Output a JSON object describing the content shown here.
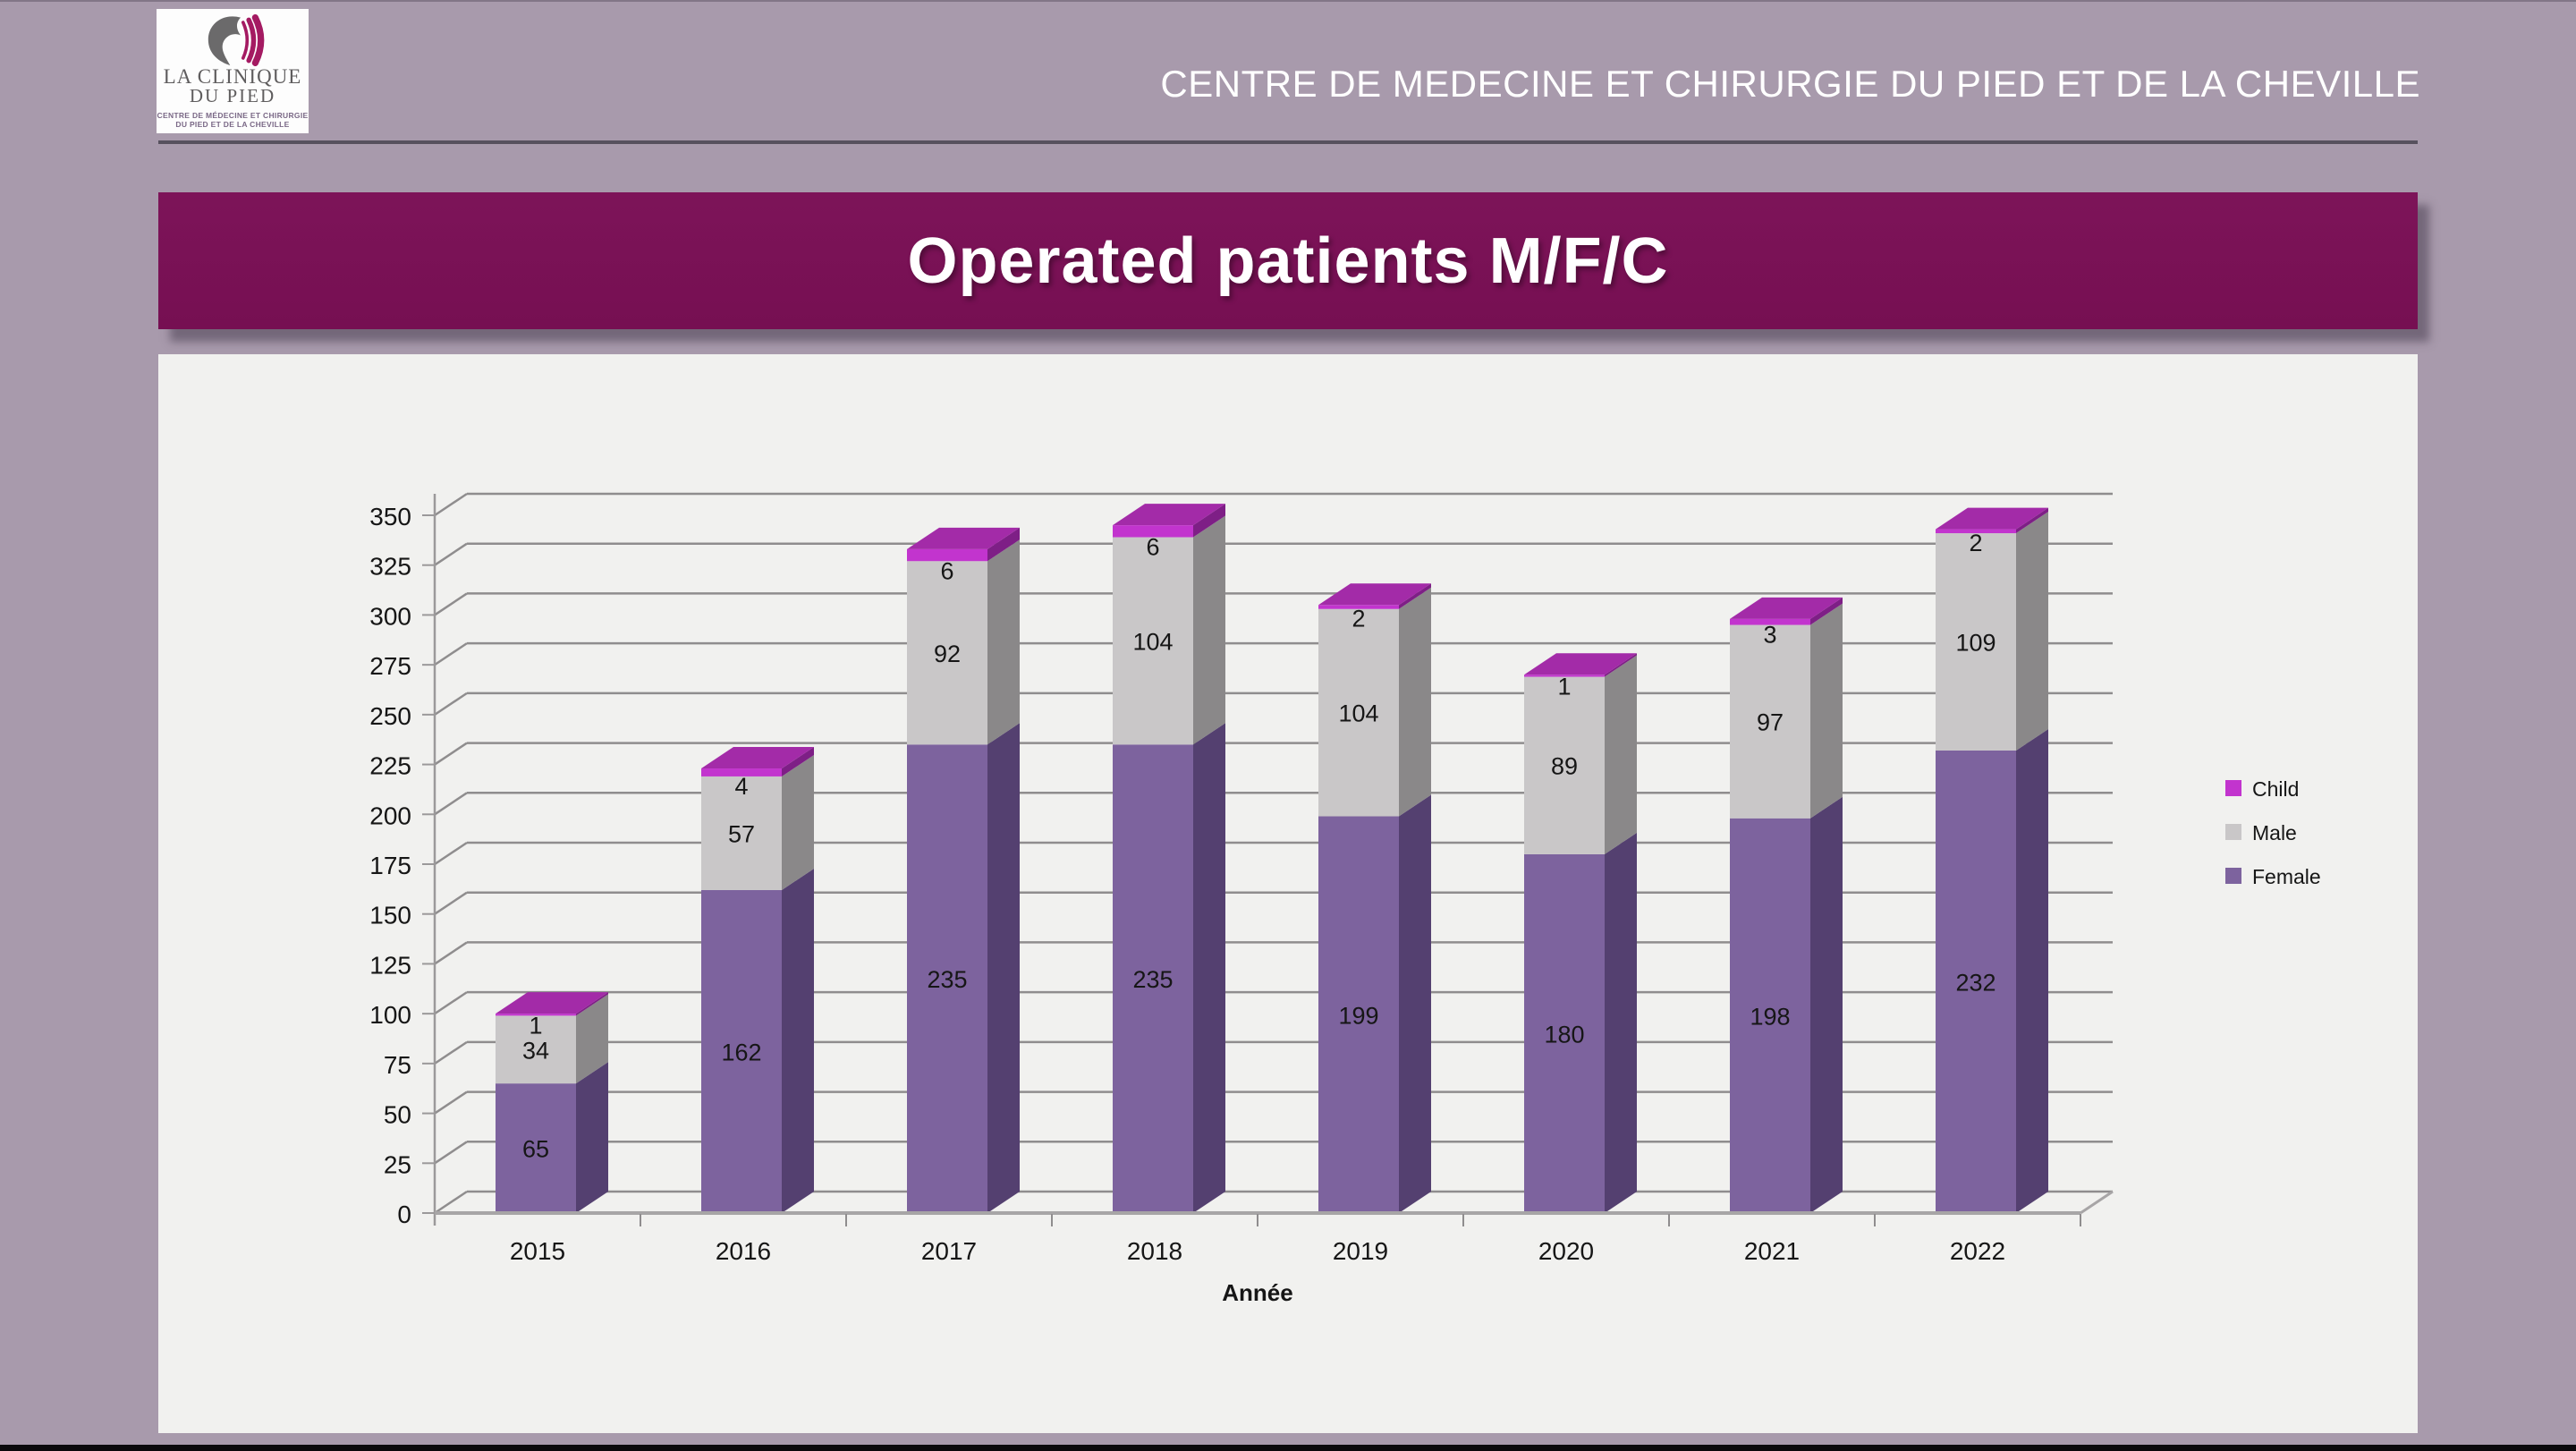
{
  "logo": {
    "name_line1": "LA CLINIQUE",
    "name_line2": "DU PIED",
    "tagline1": "CENTRE DE MÉDECINE ET CHIRURGIE",
    "tagline2": "DU PIED ET DE LA CHEVILLE",
    "icon_gray": "#6b6a6b",
    "icon_magenta": "#a41a62"
  },
  "header": {
    "title": "CENTRE DE MEDECINE ET CHIRURGIE DU PIED ET DE LA CHEVILLE"
  },
  "banner": {
    "title": "Operated patients M/F/C",
    "bg": "#7b1257"
  },
  "chart_data": {
    "type": "bar",
    "stacked": true,
    "projection": "3d",
    "title": "",
    "xlabel": "Année",
    "ylabel": "",
    "ylim": [
      0,
      350
    ],
    "ytick_step": 25,
    "yticks": [
      0,
      25,
      50,
      75,
      100,
      125,
      150,
      175,
      200,
      225,
      250,
      275,
      300,
      325,
      350
    ],
    "grid": true,
    "categories": [
      "2015",
      "2016",
      "2017",
      "2018",
      "2019",
      "2020",
      "2021",
      "2022"
    ],
    "series": [
      {
        "name": "Female",
        "values": [
          65,
          162,
          235,
          235,
          199,
          180,
          198,
          232
        ],
        "color": "#7d639e",
        "side_color": "#544070",
        "top_color": "#6d5590"
      },
      {
        "name": "Male",
        "values": [
          34,
          57,
          92,
          104,
          104,
          89,
          97,
          109
        ],
        "color": "#c9c7c8",
        "side_color": "#8a8889",
        "top_color": "#b2b0b1"
      },
      {
        "name": "Child",
        "values": [
          1,
          4,
          6,
          6,
          2,
          1,
          3,
          2
        ],
        "color": "#c234ce",
        "side_color": "#7e1f86",
        "top_color": "#a32ba8"
      }
    ],
    "legend": [
      "Child",
      "Male",
      "Female"
    ],
    "legend_position": "right",
    "colors": {
      "grid": "#8f8d8e",
      "axis": "#9b999a",
      "baseline": "#a7a5a6",
      "label_text": "#161616"
    }
  }
}
